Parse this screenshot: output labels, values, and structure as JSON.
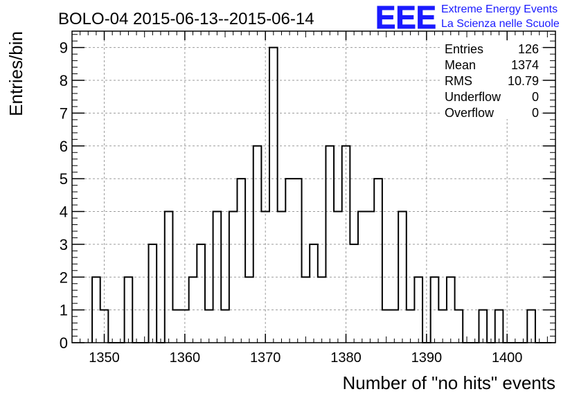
{
  "header": {
    "title": "BOLO-04 2015-06-13--2015-06-14",
    "logo_text": "EEE",
    "logo_line1": "Extreme Energy Events",
    "logo_line2": "La Scienza nelle Scuole",
    "logo_color": "#1a1aff"
  },
  "stats": [
    {
      "label": "Entries",
      "value": "126"
    },
    {
      "label": "Mean",
      "value": "1374"
    },
    {
      "label": "RMS",
      "value": "10.79"
    },
    {
      "label": "Underflow",
      "value": "0"
    },
    {
      "label": "Overflow",
      "value": "0"
    }
  ],
  "chart_data": {
    "type": "bar",
    "title": "BOLO-04 2015-06-13--2015-06-14",
    "xlabel": "Number of \"no hits\" events",
    "ylabel": "Entries/bin",
    "xlim": [
      1346,
      1406
    ],
    "ylim": [
      0,
      9.5
    ],
    "bin_width": 1,
    "grid": true,
    "x_ticks": [
      1350,
      1360,
      1370,
      1380,
      1390,
      1400
    ],
    "y_ticks": [
      0,
      1,
      2,
      3,
      4,
      5,
      6,
      7,
      8,
      9
    ],
    "bins": [
      {
        "x": 1349,
        "y": 2
      },
      {
        "x": 1350,
        "y": 1
      },
      {
        "x": 1353,
        "y": 2
      },
      {
        "x": 1356,
        "y": 3
      },
      {
        "x": 1358,
        "y": 4
      },
      {
        "x": 1359,
        "y": 1
      },
      {
        "x": 1360,
        "y": 1
      },
      {
        "x": 1361,
        "y": 2
      },
      {
        "x": 1362,
        "y": 3
      },
      {
        "x": 1363,
        "y": 1
      },
      {
        "x": 1364,
        "y": 4
      },
      {
        "x": 1365,
        "y": 1
      },
      {
        "x": 1366,
        "y": 4
      },
      {
        "x": 1367,
        "y": 5
      },
      {
        "x": 1368,
        "y": 2
      },
      {
        "x": 1369,
        "y": 6
      },
      {
        "x": 1370,
        "y": 4
      },
      {
        "x": 1371,
        "y": 9
      },
      {
        "x": 1372,
        "y": 4
      },
      {
        "x": 1373,
        "y": 5
      },
      {
        "x": 1374,
        "y": 5
      },
      {
        "x": 1375,
        "y": 2
      },
      {
        "x": 1376,
        "y": 3
      },
      {
        "x": 1377,
        "y": 2
      },
      {
        "x": 1378,
        "y": 6
      },
      {
        "x": 1379,
        "y": 4
      },
      {
        "x": 1380,
        "y": 6
      },
      {
        "x": 1381,
        "y": 3
      },
      {
        "x": 1382,
        "y": 4
      },
      {
        "x": 1383,
        "y": 4
      },
      {
        "x": 1384,
        "y": 5
      },
      {
        "x": 1385,
        "y": 1
      },
      {
        "x": 1386,
        "y": 1
      },
      {
        "x": 1387,
        "y": 4
      },
      {
        "x": 1388,
        "y": 1
      },
      {
        "x": 1389,
        "y": 2
      },
      {
        "x": 1391,
        "y": 2
      },
      {
        "x": 1392,
        "y": 1
      },
      {
        "x": 1393,
        "y": 2
      },
      {
        "x": 1394,
        "y": 1
      },
      {
        "x": 1397,
        "y": 1
      },
      {
        "x": 1399,
        "y": 1
      },
      {
        "x": 1403,
        "y": 1
      }
    ]
  }
}
